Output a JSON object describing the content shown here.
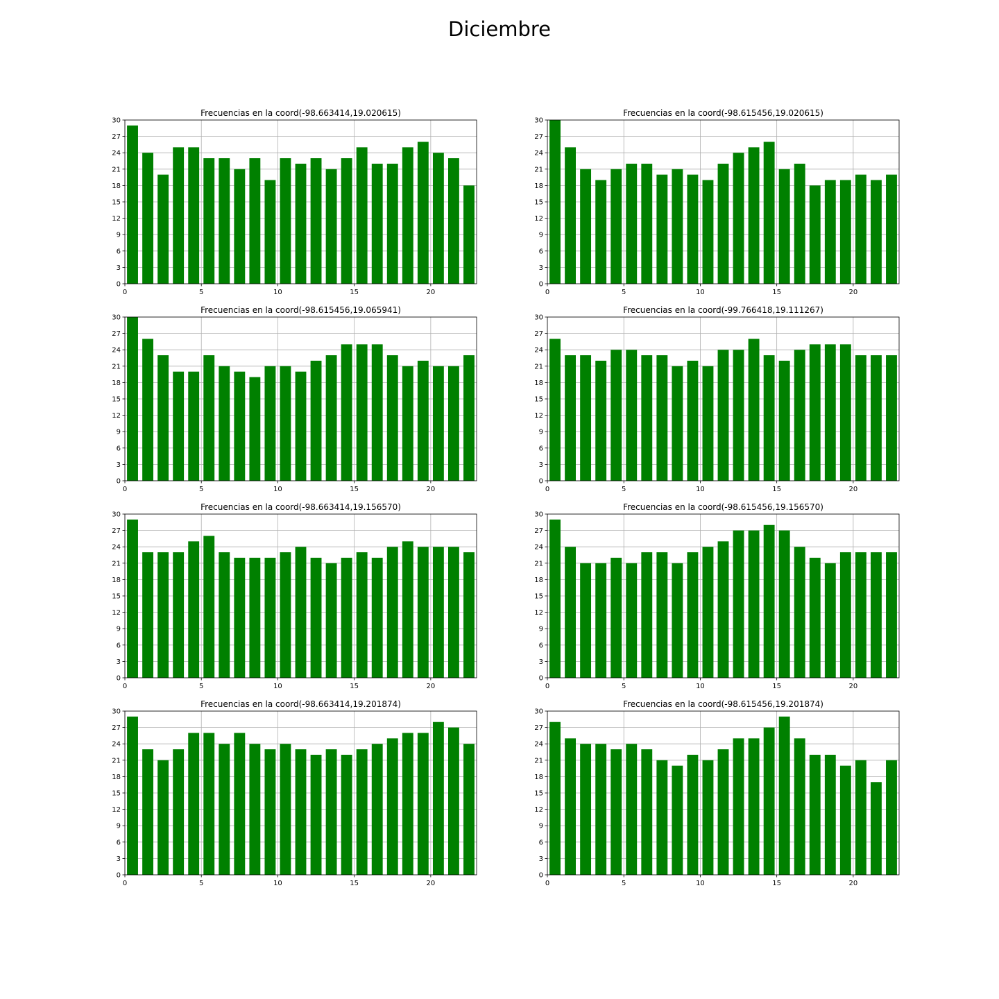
{
  "figure_title": "Diciembre",
  "chart_data": [
    {
      "type": "bar",
      "title": "Frecuencias en la coord(-98.663414,19.020615)",
      "x": [
        0,
        1,
        2,
        3,
        4,
        5,
        6,
        7,
        8,
        9,
        10,
        11,
        12,
        13,
        14,
        15,
        16,
        17,
        18,
        19,
        20,
        21,
        22
      ],
      "values": [
        29,
        24,
        20,
        25,
        25,
        23,
        23,
        21,
        23,
        19,
        23,
        22,
        23,
        21,
        23,
        25,
        22,
        22,
        25,
        26,
        24,
        23,
        18
      ],
      "xlim": [
        0,
        23
      ],
      "ylim": [
        0,
        30
      ],
      "xticks": [
        0,
        5,
        10,
        15,
        20
      ],
      "yticks": [
        0,
        3,
        6,
        9,
        12,
        15,
        18,
        21,
        24,
        27,
        30
      ],
      "grid": true,
      "color": "#008000"
    },
    {
      "type": "bar",
      "title": "Frecuencias en la coord(-98.615456,19.020615)",
      "x": [
        0,
        1,
        2,
        3,
        4,
        5,
        6,
        7,
        8,
        9,
        10,
        11,
        12,
        13,
        14,
        15,
        16,
        17,
        18,
        19,
        20,
        21,
        22
      ],
      "values": [
        30,
        25,
        21,
        19,
        21,
        22,
        22,
        20,
        21,
        20,
        19,
        22,
        24,
        25,
        26,
        21,
        22,
        18,
        19,
        19,
        20,
        19,
        20
      ],
      "xlim": [
        0,
        23
      ],
      "ylim": [
        0,
        30
      ],
      "xticks": [
        0,
        5,
        10,
        15,
        20
      ],
      "yticks": [
        0,
        3,
        6,
        9,
        12,
        15,
        18,
        21,
        24,
        27,
        30
      ],
      "grid": true,
      "color": "#008000"
    },
    {
      "type": "bar",
      "title": "Frecuencias en la coord(-98.615456,19.065941)",
      "x": [
        0,
        1,
        2,
        3,
        4,
        5,
        6,
        7,
        8,
        9,
        10,
        11,
        12,
        13,
        14,
        15,
        16,
        17,
        18,
        19,
        20,
        21,
        22
      ],
      "values": [
        30,
        26,
        23,
        20,
        20,
        23,
        21,
        20,
        19,
        21,
        21,
        20,
        22,
        23,
        25,
        25,
        25,
        23,
        21,
        22,
        21,
        21,
        23
      ],
      "xlim": [
        0,
        23
      ],
      "ylim": [
        0,
        30
      ],
      "xticks": [
        0,
        5,
        10,
        15,
        20
      ],
      "yticks": [
        0,
        3,
        6,
        9,
        12,
        15,
        18,
        21,
        24,
        27,
        30
      ],
      "grid": true,
      "color": "#008000"
    },
    {
      "type": "bar",
      "title": "Frecuencias en la coord(-99.766418,19.111267)",
      "x": [
        0,
        1,
        2,
        3,
        4,
        5,
        6,
        7,
        8,
        9,
        10,
        11,
        12,
        13,
        14,
        15,
        16,
        17,
        18,
        19,
        20,
        21,
        22
      ],
      "values": [
        26,
        23,
        23,
        22,
        24,
        24,
        23,
        23,
        21,
        22,
        21,
        24,
        24,
        26,
        23,
        22,
        24,
        25,
        25,
        25,
        23,
        23,
        23
      ],
      "xlim": [
        0,
        23
      ],
      "ylim": [
        0,
        30
      ],
      "xticks": [
        0,
        5,
        10,
        15,
        20
      ],
      "yticks": [
        0,
        3,
        6,
        9,
        12,
        15,
        18,
        21,
        24,
        27,
        30
      ],
      "grid": true,
      "color": "#008000"
    },
    {
      "type": "bar",
      "title": "Frecuencias en la coord(-98.663414,19.156570)",
      "x": [
        0,
        1,
        2,
        3,
        4,
        5,
        6,
        7,
        8,
        9,
        10,
        11,
        12,
        13,
        14,
        15,
        16,
        17,
        18,
        19,
        20,
        21,
        22
      ],
      "values": [
        29,
        23,
        23,
        23,
        25,
        26,
        23,
        22,
        22,
        22,
        23,
        24,
        22,
        21,
        22,
        23,
        22,
        24,
        25,
        24,
        24,
        24,
        23
      ],
      "xlim": [
        0,
        23
      ],
      "ylim": [
        0,
        30
      ],
      "xticks": [
        0,
        5,
        10,
        15,
        20
      ],
      "yticks": [
        0,
        3,
        6,
        9,
        12,
        15,
        18,
        21,
        24,
        27,
        30
      ],
      "grid": true,
      "color": "#008000"
    },
    {
      "type": "bar",
      "title": "Frecuencias en la coord(-98.615456,19.156570)",
      "x": [
        0,
        1,
        2,
        3,
        4,
        5,
        6,
        7,
        8,
        9,
        10,
        11,
        12,
        13,
        14,
        15,
        16,
        17,
        18,
        19,
        20,
        21,
        22
      ],
      "values": [
        29,
        24,
        21,
        21,
        22,
        21,
        23,
        23,
        21,
        23,
        24,
        25,
        27,
        27,
        28,
        27,
        24,
        22,
        21,
        23,
        23,
        23,
        23
      ],
      "xlim": [
        0,
        23
      ],
      "ylim": [
        0,
        30
      ],
      "xticks": [
        0,
        5,
        10,
        15,
        20
      ],
      "yticks": [
        0,
        3,
        6,
        9,
        12,
        15,
        18,
        21,
        24,
        27,
        30
      ],
      "grid": true,
      "color": "#008000"
    },
    {
      "type": "bar",
      "title": "Frecuencias en la coord(-98.663414,19.201874)",
      "x": [
        0,
        1,
        2,
        3,
        4,
        5,
        6,
        7,
        8,
        9,
        10,
        11,
        12,
        13,
        14,
        15,
        16,
        17,
        18,
        19,
        20,
        21,
        22
      ],
      "values": [
        29,
        23,
        21,
        23,
        26,
        26,
        24,
        26,
        24,
        23,
        24,
        23,
        22,
        23,
        22,
        23,
        24,
        25,
        26,
        26,
        28,
        27,
        24
      ],
      "xlim": [
        0,
        23
      ],
      "ylim": [
        0,
        30
      ],
      "xticks": [
        0,
        5,
        10,
        15,
        20
      ],
      "yticks": [
        0,
        3,
        6,
        9,
        12,
        15,
        18,
        21,
        24,
        27,
        30
      ],
      "grid": true,
      "color": "#008000"
    },
    {
      "type": "bar",
      "title": "Frecuencias en la coord(-98.615456,19.201874)",
      "x": [
        0,
        1,
        2,
        3,
        4,
        5,
        6,
        7,
        8,
        9,
        10,
        11,
        12,
        13,
        14,
        15,
        16,
        17,
        18,
        19,
        20,
        21,
        22
      ],
      "values": [
        28,
        25,
        24,
        24,
        23,
        24,
        23,
        21,
        20,
        22,
        21,
        23,
        25,
        25,
        27,
        29,
        25,
        22,
        22,
        20,
        21,
        17,
        21
      ],
      "xlim": [
        0,
        23
      ],
      "ylim": [
        0,
        30
      ],
      "xticks": [
        0,
        5,
        10,
        15,
        20
      ],
      "yticks": [
        0,
        3,
        6,
        9,
        12,
        15,
        18,
        21,
        24,
        27,
        30
      ],
      "grid": true,
      "color": "#008000"
    }
  ]
}
